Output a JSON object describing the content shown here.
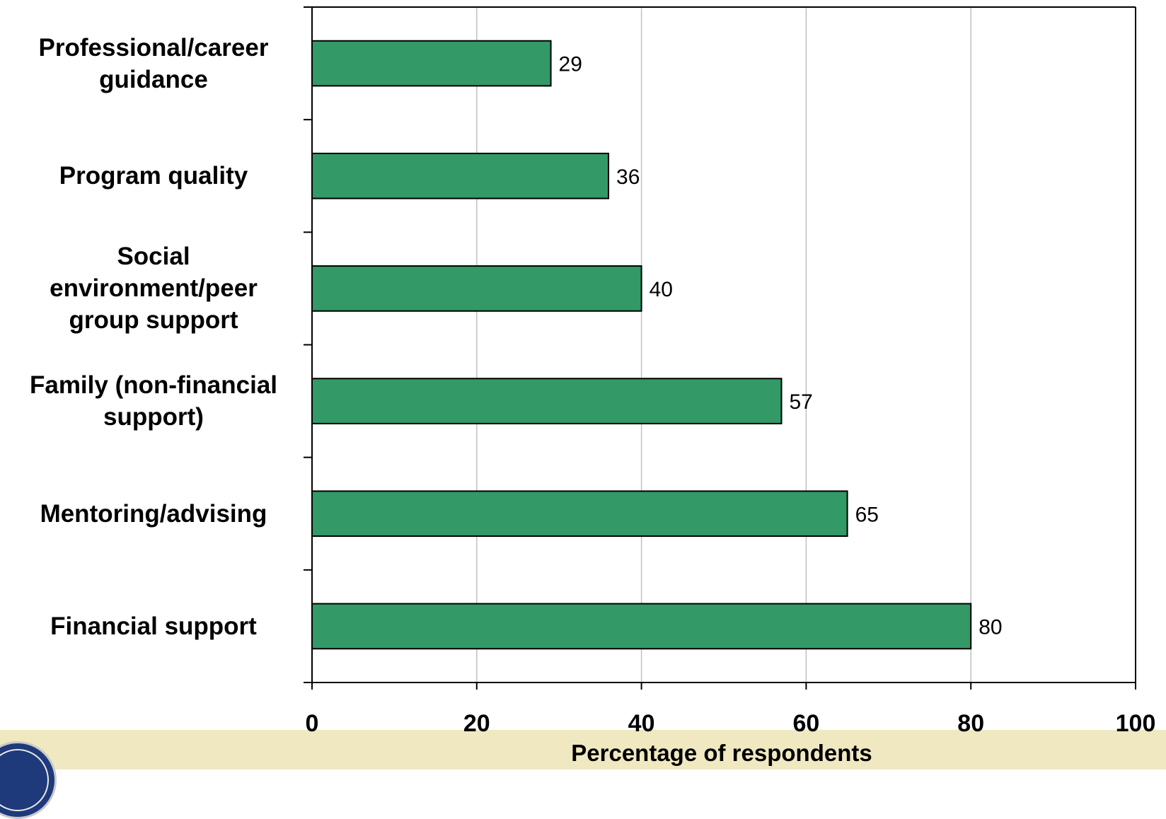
{
  "chart_data": {
    "type": "bar",
    "orientation": "horizontal",
    "categories": [
      "Professional/career guidance",
      "Program quality",
      "Social environment/peer group support",
      "Family (non-financial support)",
      "Mentoring/advising",
      "Financial support"
    ],
    "values": [
      29,
      36,
      40,
      57,
      65,
      80
    ],
    "data_labels": [
      "29",
      "36",
      "40",
      "57",
      "65",
      "80"
    ],
    "title": "",
    "xlabel": "Percentage of respondents",
    "ylabel": "",
    "xlim": [
      0,
      100
    ],
    "xticks": [
      0,
      20,
      40,
      60,
      80,
      100
    ],
    "xtick_labels": [
      "0",
      "20",
      "40",
      "60",
      "80",
      "100"
    ],
    "grid": "vertical",
    "bar_color": "#339966",
    "legend": "none"
  },
  "category_display_lines": [
    [
      "Professional/career",
      "guidance"
    ],
    [
      "Program quality"
    ],
    [
      "Social",
      "environment/peer",
      "group support"
    ],
    [
      "Family (non-financial",
      "support)"
    ],
    [
      "Mentoring/advising"
    ],
    [
      "Financial support"
    ]
  ],
  "colors": {
    "footer_band": "#f0e8c0",
    "gridline": "#c0c0c0",
    "axis": "#000000"
  },
  "icons": {
    "logo": "seal-logo-icon"
  }
}
